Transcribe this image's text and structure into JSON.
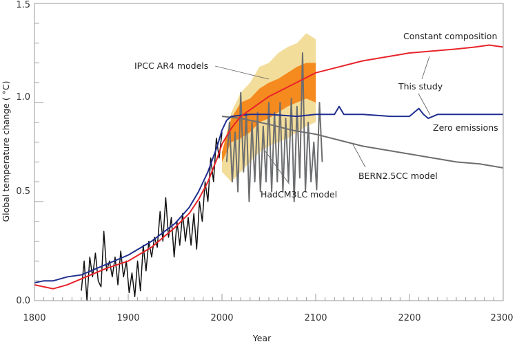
{
  "chart_data": {
    "type": "line",
    "title": "",
    "xlabel": "Year",
    "ylabel": "Global temperature change ( °C)",
    "xlim": [
      1800,
      2300
    ],
    "ylim": [
      0.0,
      1.5
    ],
    "x_ticks": [
      "1800",
      "1900",
      "2000",
      "2100",
      "2200",
      "2300"
    ],
    "y_ticks": [
      "0.0",
      "0.5",
      "1.0",
      "1.5"
    ],
    "grid": false,
    "colors": {
      "constant": "#e8232a",
      "zero": "#1f2e8f",
      "bern": "#6d6e70",
      "hadcm3": "#6d6e70",
      "obs": "#111111",
      "ipcc_outer": "#f2dd9b",
      "ipcc_inner": "#f58a1f"
    },
    "annotations": {
      "ipcc": "IPCC AR4 models",
      "constant": "Constant composition",
      "this_study": "This study",
      "zero": "Zero emissions",
      "bern": "BERN2.5CC model",
      "hadcm3": "HadCM3LC model"
    },
    "series": {
      "constant_composition": {
        "x": [
          1800,
          1810,
          1820,
          1835,
          1850,
          1875,
          1900,
          1925,
          1950,
          1965,
          1975,
          1985,
          1995,
          2000,
          2010,
          2020,
          2035,
          2050,
          2075,
          2100,
          2125,
          2150,
          2175,
          2200,
          2225,
          2250,
          2270,
          2285,
          2300
        ],
        "y": [
          0.08,
          0.07,
          0.06,
          0.08,
          0.11,
          0.16,
          0.2,
          0.27,
          0.37,
          0.44,
          0.51,
          0.6,
          0.72,
          0.79,
          0.87,
          0.93,
          0.98,
          1.03,
          1.09,
          1.15,
          1.18,
          1.21,
          1.23,
          1.25,
          1.26,
          1.27,
          1.28,
          1.29,
          1.28
        ]
      },
      "zero_emissions": {
        "x": [
          1800,
          1810,
          1820,
          1835,
          1850,
          1875,
          1900,
          1925,
          1950,
          1965,
          1975,
          1985,
          1995,
          2000,
          2005,
          2010,
          2030,
          2050,
          2080,
          2100,
          2120,
          2125,
          2130,
          2150,
          2180,
          2200,
          2205,
          2210,
          2215,
          2220,
          2230,
          2260,
          2300
        ],
        "y": [
          0.09,
          0.1,
          0.1,
          0.12,
          0.13,
          0.18,
          0.23,
          0.3,
          0.39,
          0.47,
          0.55,
          0.65,
          0.78,
          0.86,
          0.91,
          0.93,
          0.94,
          0.94,
          0.93,
          0.94,
          0.94,
          0.98,
          0.94,
          0.94,
          0.93,
          0.93,
          0.95,
          0.97,
          0.94,
          0.92,
          0.94,
          0.94,
          0.94
        ]
      },
      "bern25cc": {
        "x": [
          2000,
          2020,
          2050,
          2075,
          2100,
          2125,
          2150,
          2175,
          2200,
          2225,
          2250,
          2275,
          2300
        ],
        "y": [
          0.93,
          0.92,
          0.89,
          0.86,
          0.84,
          0.81,
          0.78,
          0.76,
          0.74,
          0.72,
          0.7,
          0.69,
          0.67
        ]
      },
      "observations": {
        "x": [
          1850,
          1853,
          1856,
          1859,
          1862,
          1865,
          1868,
          1871,
          1874,
          1877,
          1880,
          1883,
          1886,
          1889,
          1892,
          1895,
          1898,
          1901,
          1904,
          1907,
          1910,
          1913,
          1916,
          1919,
          1922,
          1925,
          1928,
          1931,
          1934,
          1937,
          1940,
          1943,
          1946,
          1949,
          1952,
          1955,
          1958,
          1961,
          1964,
          1967,
          1970,
          1973,
          1976,
          1979,
          1982,
          1985,
          1988,
          1991,
          1994,
          1997,
          2000
        ],
        "y": [
          0.05,
          0.2,
          0.0,
          0.22,
          0.12,
          0.24,
          0.1,
          0.07,
          0.35,
          0.15,
          0.2,
          0.12,
          0.22,
          0.08,
          0.25,
          0.12,
          0.2,
          0.04,
          0.14,
          0.02,
          0.2,
          0.05,
          0.28,
          0.15,
          0.3,
          0.22,
          0.32,
          0.27,
          0.45,
          0.3,
          0.52,
          0.32,
          0.42,
          0.22,
          0.4,
          0.28,
          0.44,
          0.3,
          0.42,
          0.28,
          0.44,
          0.26,
          0.5,
          0.4,
          0.6,
          0.5,
          0.72,
          0.6,
          0.82,
          0.72,
          0.85
        ]
      },
      "hadcm3lc": {
        "x": [
          2005,
          2008,
          2011,
          2014,
          2017,
          2020,
          2023,
          2026,
          2029,
          2032,
          2035,
          2038,
          2041,
          2044,
          2047,
          2050,
          2053,
          2056,
          2059,
          2062,
          2065,
          2068,
          2071,
          2074,
          2077,
          2080,
          2083,
          2086,
          2089,
          2092,
          2095,
          2098,
          2101,
          2104,
          2107
        ],
        "y": [
          0.7,
          0.9,
          0.6,
          0.85,
          0.55,
          1.05,
          0.65,
          0.95,
          0.5,
          0.9,
          0.6,
          0.95,
          0.55,
          0.88,
          0.6,
          1.0,
          0.55,
          0.95,
          0.6,
          1.0,
          0.55,
          0.92,
          0.6,
          1.02,
          0.5,
          0.98,
          0.62,
          1.25,
          0.55,
          0.9,
          0.6,
          0.8,
          0.56,
          1.0,
          0.7
        ]
      },
      "ipcc_ar4_range": {
        "x": [
          2000,
          2010,
          2020,
          2030,
          2040,
          2050,
          2060,
          2070,
          2080,
          2090,
          2100
        ],
        "outer_low": [
          0.65,
          0.6,
          0.65,
          0.7,
          0.75,
          0.78,
          0.8,
          0.82,
          0.85,
          0.88,
          0.9
        ],
        "outer_high": [
          0.75,
          0.95,
          1.05,
          1.1,
          1.18,
          1.2,
          1.25,
          1.28,
          1.3,
          1.35,
          1.32
        ],
        "inner_low": [
          0.7,
          0.8,
          0.82,
          0.85,
          0.9,
          0.92,
          0.95,
          0.98,
          1.0,
          1.02,
          1.0
        ],
        "inner_high": [
          0.75,
          0.92,
          1.0,
          1.02,
          1.07,
          1.1,
          1.12,
          1.15,
          1.18,
          1.2,
          1.2
        ]
      }
    }
  }
}
